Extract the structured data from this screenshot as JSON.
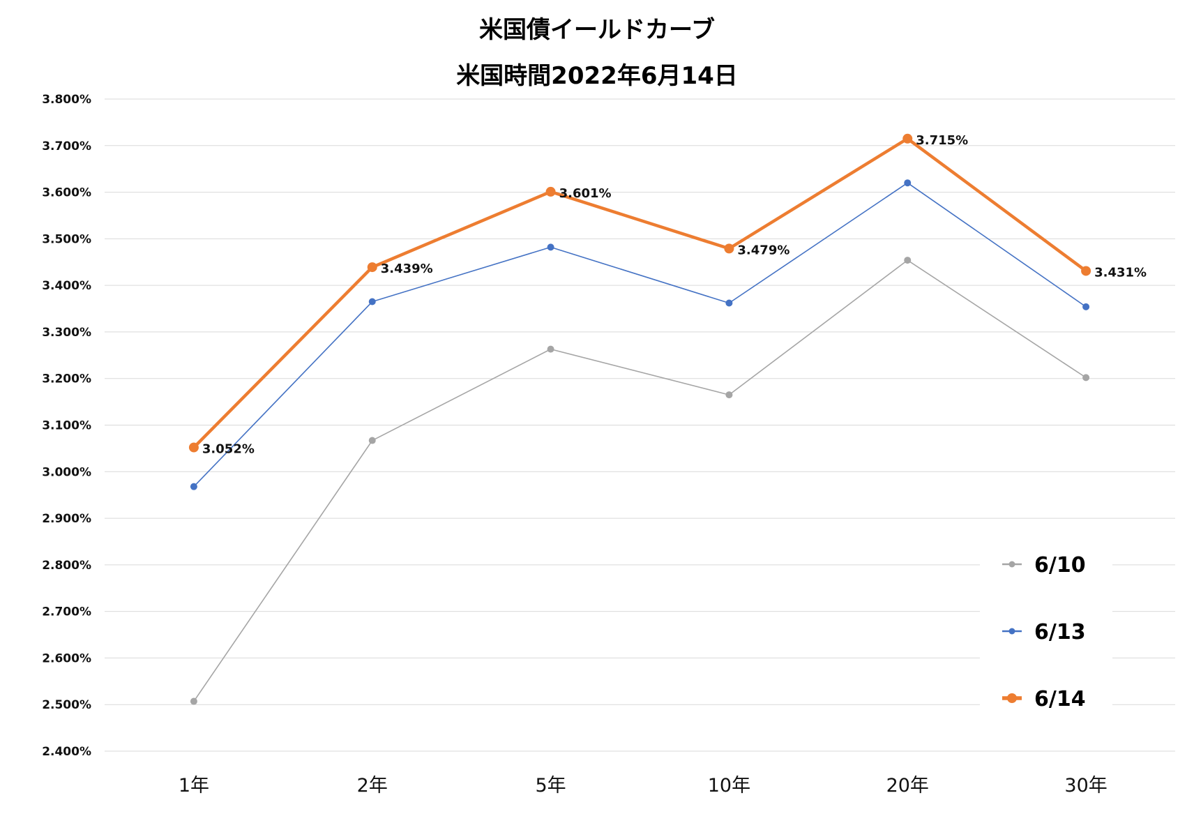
{
  "chart_data": {
    "type": "line",
    "title": "米国債イールドカーブ",
    "subtitle": "米国時間2022年6月14日",
    "categories": [
      "1年",
      "2年",
      "5年",
      "10年",
      "20年",
      "30年"
    ],
    "ylim": [
      2.4,
      3.8
    ],
    "yticks": [
      "3.800%",
      "3.700%",
      "3.600%",
      "3.500%",
      "3.400%",
      "3.300%",
      "3.200%",
      "3.100%",
      "3.000%",
      "2.900%",
      "2.800%",
      "2.700%",
      "2.600%",
      "2.500%",
      "2.400%"
    ],
    "grid": true,
    "legend_position": "bottom-right",
    "series": [
      {
        "name": "6/10",
        "color": "#a5a5a5",
        "values": [
          2.507,
          3.067,
          3.263,
          3.165,
          3.454,
          3.202
        ],
        "labels": null
      },
      {
        "name": "6/13",
        "color": "#4472c4",
        "values": [
          2.968,
          3.365,
          3.482,
          3.362,
          3.62,
          3.354
        ],
        "labels": null
      },
      {
        "name": "6/14",
        "color": "#ed7d31",
        "values": [
          3.052,
          3.439,
          3.601,
          3.479,
          3.715,
          3.431
        ],
        "labels": [
          "3.052%",
          "3.439%",
          "3.601%",
          "3.479%",
          "3.715%",
          "3.431%"
        ]
      }
    ]
  }
}
